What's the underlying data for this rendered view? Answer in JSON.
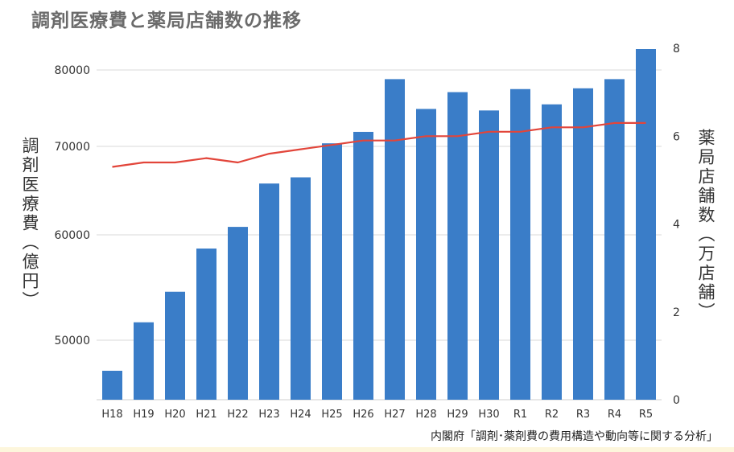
{
  "title": "調剤医療費と薬局店舗数の推移",
  "left_axis_label": "調剤医療費（億円）",
  "right_axis_label": "薬局店舗数（万店舗）",
  "source": "内閣府「調剤･薬剤費の費用構造や動向等に関する分析」",
  "colors": {
    "bar": "#3a7dc8",
    "line": "#e2453a",
    "grid": "#d9d9d9",
    "text": "#333333"
  },
  "chart_data": {
    "type": "bar",
    "categories": [
      "H18",
      "H19",
      "H20",
      "H21",
      "H22",
      "H23",
      "H24",
      "H25",
      "H26",
      "H27",
      "H28",
      "H29",
      "H30",
      "R1",
      "R2",
      "R3",
      "R4",
      "R5"
    ],
    "left_ticks": [
      80000,
      70000,
      60000,
      50000
    ],
    "right_ticks": [
      8,
      6,
      4,
      2,
      0
    ],
    "series": [
      {
        "name": "調剤医療費（億円）",
        "axis": "left",
        "type": "bar",
        "values": [
          46500,
          51700,
          54600,
          58700,
          60900,
          65800,
          66500,
          70400,
          71900,
          78800,
          74900,
          77100,
          74700,
          77500,
          75500,
          77600,
          78800,
          82300
        ]
      },
      {
        "name": "薬局店舗数（万店舗）",
        "axis": "right",
        "type": "line",
        "values": [
          5.3,
          5.4,
          5.4,
          5.5,
          5.4,
          5.6,
          5.7,
          5.8,
          5.9,
          5.9,
          6.0,
          6.0,
          6.1,
          6.1,
          6.2,
          6.2,
          6.3,
          6.3
        ]
      }
    ]
  }
}
